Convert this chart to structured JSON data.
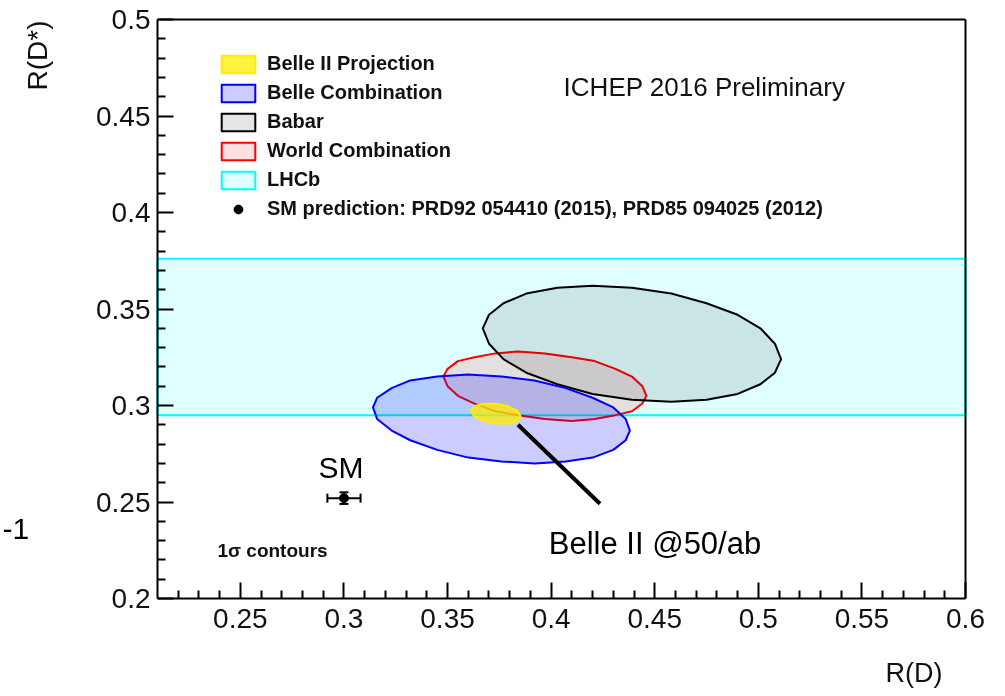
{
  "chart_data": {
    "type": "area",
    "xlabel": "R(D)",
    "ylabel": "R(D*)",
    "xlim": [
      0.21,
      0.6
    ],
    "ylim": [
      0.2,
      0.5
    ],
    "xticks": [
      {
        "value": 0.22,
        "label": null
      },
      {
        "value": 0.23,
        "label": null
      },
      {
        "value": 0.24,
        "label": null
      },
      0.25,
      {
        "value": 0.26,
        "label": null
      },
      {
        "value": 0.27,
        "label": null
      },
      {
        "value": 0.28,
        "label": null
      },
      {
        "value": 0.29,
        "label": null
      },
      0.3,
      {
        "value": 0.31,
        "label": null
      },
      {
        "value": 0.32,
        "label": null
      },
      {
        "value": 0.33,
        "label": null
      },
      {
        "value": 0.34,
        "label": null
      },
      0.35,
      {
        "value": 0.36,
        "label": null
      },
      {
        "value": 0.37,
        "label": null
      },
      {
        "value": 0.38,
        "label": null
      },
      {
        "value": 0.39,
        "label": null
      },
      0.4,
      {
        "value": 0.41,
        "label": null
      },
      {
        "value": 0.42,
        "label": null
      },
      {
        "value": 0.43,
        "label": null
      },
      {
        "value": 0.44,
        "label": null
      },
      0.45,
      {
        "value": 0.46,
        "label": null
      },
      {
        "value": 0.47,
        "label": null
      },
      {
        "value": 0.48,
        "label": null
      },
      {
        "value": 0.49,
        "label": null
      },
      0.5,
      {
        "value": 0.51,
        "label": null
      },
      {
        "value": 0.52,
        "label": null
      },
      {
        "value": 0.53,
        "label": null
      },
      {
        "value": 0.54,
        "label": null
      },
      0.55,
      {
        "value": 0.56,
        "label": null
      },
      {
        "value": 0.57,
        "label": null
      },
      {
        "value": 0.58,
        "label": null
      },
      {
        "value": 0.59,
        "label": null
      },
      0.6
    ],
    "yticks": [
      0.2,
      {
        "value": 0.21,
        "label": null
      },
      {
        "value": 0.22,
        "label": null
      },
      {
        "value": 0.23,
        "label": null
      },
      {
        "value": 0.24,
        "label": null
      },
      0.25,
      {
        "value": 0.26,
        "label": null
      },
      {
        "value": 0.27,
        "label": null
      },
      {
        "value": 0.28,
        "label": null
      },
      {
        "value": 0.29,
        "label": null
      },
      0.3,
      {
        "value": 0.31,
        "label": null
      },
      {
        "value": 0.32,
        "label": null
      },
      {
        "value": 0.33,
        "label": null
      },
      {
        "value": 0.34,
        "label": null
      },
      0.35,
      {
        "value": 0.36,
        "label": null
      },
      {
        "value": 0.37,
        "label": null
      },
      {
        "value": 0.38,
        "label": null
      },
      {
        "value": 0.39,
        "label": null
      },
      0.4,
      {
        "value": 0.41,
        "label": null
      },
      {
        "value": 0.42,
        "label": null
      },
      {
        "value": 0.43,
        "label": null
      },
      {
        "value": 0.44,
        "label": null
      },
      0.45,
      {
        "value": 0.46,
        "label": null
      },
      {
        "value": 0.47,
        "label": null
      },
      {
        "value": 0.48,
        "label": null
      },
      {
        "value": 0.49,
        "label": null
      },
      0.5
    ],
    "series": [
      {
        "name": "Belle II Projection",
        "color": "#ffee00",
        "x": [
          0.3853,
          0.3837,
          0.3793,
          0.3733,
          0.3673,
          0.3629,
          0.3613,
          0.3629,
          0.3673,
          0.3733,
          0.3793,
          0.3837
        ],
        "values": [
          0.2944,
          0.292,
          0.2907,
          0.2907,
          0.292,
          0.2944,
          0.2972,
          0.2996,
          0.3009,
          0.3009,
          0.2996,
          0.2972
        ]
      },
      {
        "name": "Belle Combination",
        "color": "#0000ff",
        "x": [
          0.438,
          0.436,
          0.43,
          0.42,
          0.407,
          0.392,
          0.376,
          0.36,
          0.345,
          0.332,
          0.323,
          0.316,
          0.314,
          0.316,
          0.323,
          0.332,
          0.345,
          0.36,
          0.376,
          0.392,
          0.407,
          0.42,
          0.43,
          0.436
        ],
        "values": [
          0.287,
          0.282,
          0.277,
          0.273,
          0.271,
          0.27,
          0.271,
          0.273,
          0.277,
          0.282,
          0.287,
          0.293,
          0.299,
          0.304,
          0.309,
          0.313,
          0.315,
          0.316,
          0.315,
          0.313,
          0.309,
          0.304,
          0.299,
          0.293
        ]
      },
      {
        "name": "Babar",
        "color": "#000000",
        "x": [
          0.511,
          0.508,
          0.501,
          0.49,
          0.475,
          0.458,
          0.439,
          0.42,
          0.403,
          0.388,
          0.377,
          0.37,
          0.367,
          0.37,
          0.377,
          0.388,
          0.403,
          0.42,
          0.439,
          0.458,
          0.475,
          0.49,
          0.501,
          0.508
        ],
        "values": [
          0.324,
          0.317,
          0.311,
          0.306,
          0.303,
          0.302,
          0.303,
          0.306,
          0.311,
          0.317,
          0.324,
          0.332,
          0.34,
          0.347,
          0.353,
          0.358,
          0.361,
          0.362,
          0.361,
          0.358,
          0.353,
          0.347,
          0.34,
          0.332
        ]
      },
      {
        "name": "World Combination",
        "color": "#ff0000",
        "x": [
          0.446,
          0.444,
          0.439,
          0.431,
          0.421,
          0.41,
          0.397,
          0.384,
          0.373,
          0.363,
          0.355,
          0.35,
          0.348,
          0.35,
          0.355,
          0.363,
          0.373,
          0.384,
          0.397,
          0.41,
          0.421,
          0.431,
          0.439,
          0.444
        ],
        "values": [
          0.305,
          0.301,
          0.297,
          0.295,
          0.293,
          0.292,
          0.293,
          0.295,
          0.297,
          0.301,
          0.305,
          0.31,
          0.315,
          0.319,
          0.323,
          0.325,
          0.327,
          0.328,
          0.327,
          0.325,
          0.323,
          0.319,
          0.315,
          0.31
        ]
      },
      {
        "name": "SM prediction: PRD92 054410 (2015), PRD85 094025 (2012)",
        "type": "scatter",
        "color": "#000000",
        "marker": "circle",
        "x": [
          0.3
        ],
        "values": [
          0.252
        ],
        "errors": [
          0.003
        ],
        "xerrors": [
          0.008
        ]
      }
    ],
    "bands": [
      {
        "axis": "y",
        "from": 0.295,
        "to": 0.376,
        "label": "LHCb",
        "color": "#00ffff"
      }
    ],
    "legend": "top left",
    "annotations": [
      "ICHEP 2016 Preliminary",
      "1σ contours",
      {
        "text": "SM",
        "x": 0.3,
        "y": 0.252
      },
      {
        "text": "Belle II @50/ab",
        "x": 0.384,
        "y": 0.29
      },
      "-1"
    ]
  }
}
